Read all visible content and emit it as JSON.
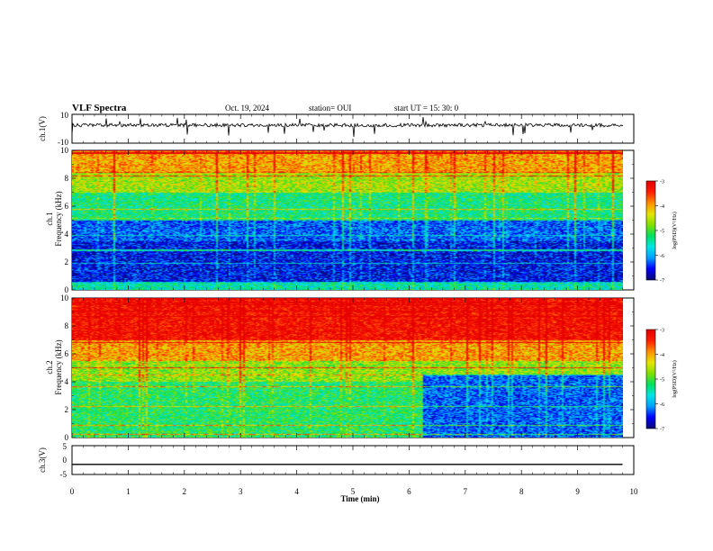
{
  "header": {
    "title": "VLF Spectra",
    "date": "Oct. 19, 2024",
    "station": "station= OUI",
    "start": "start  UT =   15: 30: 0"
  },
  "colors": {
    "waveform": "#000000",
    "colormap": [
      "#0a0a78",
      "#0000ff",
      "#00a0ff",
      "#00e6e6",
      "#00e060",
      "#7fe000",
      "#e6e600",
      "#ff9000",
      "#ff1e00",
      "#e60000"
    ]
  },
  "chart_data": [
    {
      "type": "line",
      "name": "waveform-ch1",
      "ylabel": "ch.1(V)",
      "ylim": [
        -10,
        10
      ],
      "yticks": [
        "10",
        "-10"
      ],
      "description_values": "noisy signal centered slightly above 0 V with occasional negative spikes",
      "baseline": 2.5,
      "amplitude": 1.2
    },
    {
      "type": "heatmap",
      "name": "spectrogram-ch1",
      "ylabel": "ch.1\nFrequency (kHz)",
      "ylim": [
        0,
        10
      ],
      "yticks": [
        "0",
        "2",
        "4",
        "6",
        "8",
        "10"
      ],
      "colorbar": {
        "label": "log(PSD)(V²/Hz)",
        "range": [
          -7,
          -3
        ],
        "ticks": [
          "-3",
          "-4",
          "-5",
          "-6",
          "-7"
        ]
      },
      "bands": [
        {
          "from": 8.5,
          "to": 10,
          "level": -4.0
        },
        {
          "from": 7.0,
          "to": 8.5,
          "level": -4.6
        },
        {
          "from": 5.0,
          "to": 7.0,
          "level": -5.3
        },
        {
          "from": 3.5,
          "to": 5.0,
          "level": -6.3
        },
        {
          "from": 0.5,
          "to": 3.5,
          "level": -6.6
        },
        {
          "from": 0,
          "to": 0.5,
          "level": -5.5
        }
      ]
    },
    {
      "type": "heatmap",
      "name": "spectrogram-ch2",
      "ylabel": "ch.2\nFrequency (kHz)",
      "ylim": [
        0,
        10
      ],
      "yticks": [
        "0",
        "2",
        "4",
        "6",
        "8",
        "10"
      ],
      "colorbar": {
        "label": "log(PSD)(V²/Hz)",
        "range": [
          -7,
          -3
        ],
        "ticks": [
          "-3",
          "-4",
          "-5",
          "-6",
          "-7"
        ]
      },
      "bands": [
        {
          "from": 7.0,
          "to": 10,
          "level": -3.2
        },
        {
          "from": 5.5,
          "to": 7.0,
          "level": -4.0
        },
        {
          "from": 4.0,
          "to": 5.5,
          "level": -4.7
        },
        {
          "from": 0,
          "to": 4.0,
          "level": -5.2
        }
      ],
      "quiet_region": {
        "xfrom": 6.25,
        "xto": 9.8,
        "fto": 4.5,
        "level": -6.3
      }
    },
    {
      "type": "line",
      "name": "waveform-ch3",
      "ylabel": "ch.3(V)",
      "ylim": [
        -5,
        5
      ],
      "yticks": [
        "5",
        "0",
        "-5"
      ],
      "x": [
        0,
        9.8
      ],
      "y": [
        -1.5,
        -1.5
      ]
    }
  ],
  "xaxis": {
    "label": "Time  (min)",
    "ticks": [
      "0",
      "1",
      "2",
      "3",
      "4",
      "5",
      "6",
      "7",
      "8",
      "9",
      "10"
    ],
    "range": [
      0,
      10
    ]
  }
}
